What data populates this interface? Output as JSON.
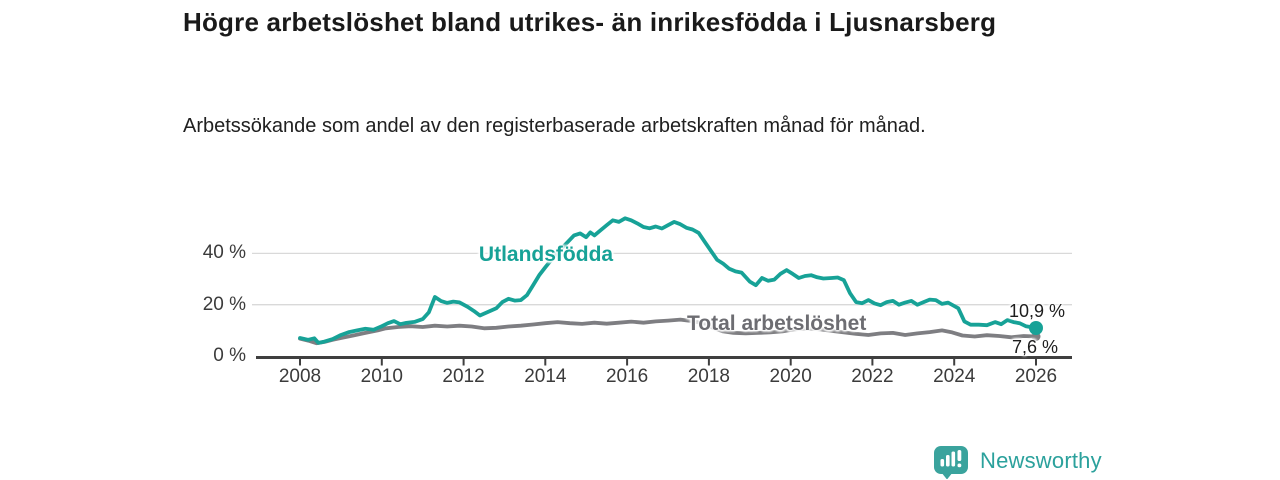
{
  "header": {
    "title": "Högre arbetslöshet bland utrikes- än inrikesfödda i Ljusnarsberg",
    "subtitle": "Arbetssökande som andel av den registerbaserade arbetskraften månad för månad."
  },
  "footer": {
    "brand": "Newsworthy",
    "logo_icon": "bar-chart-badge-icon"
  },
  "colors": {
    "foreign_born_line": "#17a297",
    "total_line": "#7e7e82",
    "total_label": "#6d6d72",
    "grid": "#d9d9d9",
    "axis": "#3f3f3f",
    "brand_teal": "#2ba19c",
    "end_label_text": "#1d1d1d"
  },
  "chart_data": {
    "type": "line",
    "title": "Högre arbetslöshet bland utrikes- än inrikesfödda i Ljusnarsberg",
    "subtitle": "Arbetssökande som andel av den registerbaserade arbetskraften månad för månad.",
    "unit": "%",
    "xlim": [
      2006.9,
      2026.9
    ],
    "ylim": [
      0,
      56
    ],
    "grid": "horizontal",
    "legend_position": "inline-labels",
    "y_ticks": {
      "values": [
        0,
        20,
        40
      ],
      "labels": [
        "0 %",
        "20 %",
        "40 %"
      ]
    },
    "gridline_values": [
      20,
      40
    ],
    "x_ticks": {
      "values": [
        2008,
        2010,
        2012,
        2014,
        2016,
        2018,
        2020,
        2022,
        2024,
        2026
      ],
      "labels": [
        "2008",
        "2010",
        "2012",
        "2014",
        "2016",
        "2018",
        "2020",
        "2022",
        "2024",
        "2026"
      ]
    },
    "series": [
      {
        "name": "Utlandsfödda",
        "color": "#17a297",
        "end_label": "10,9 %",
        "end_value": 10.9,
        "points": [
          [
            2008.0,
            7.0
          ],
          [
            2008.2,
            6.3
          ],
          [
            2008.35,
            6.9
          ],
          [
            2008.45,
            5.1
          ],
          [
            2008.6,
            5.6
          ],
          [
            2008.8,
            6.6
          ],
          [
            2009.0,
            8.2
          ],
          [
            2009.2,
            9.3
          ],
          [
            2009.4,
            10.0
          ],
          [
            2009.6,
            10.6
          ],
          [
            2009.8,
            10.2
          ],
          [
            2010.0,
            11.6
          ],
          [
            2010.15,
            12.8
          ],
          [
            2010.3,
            13.6
          ],
          [
            2010.45,
            12.4
          ],
          [
            2010.6,
            12.9
          ],
          [
            2010.8,
            13.3
          ],
          [
            2011.0,
            14.4
          ],
          [
            2011.15,
            17.0
          ],
          [
            2011.3,
            23.0
          ],
          [
            2011.45,
            21.4
          ],
          [
            2011.6,
            20.7
          ],
          [
            2011.75,
            21.2
          ],
          [
            2011.9,
            20.9
          ],
          [
            2012.1,
            19.2
          ],
          [
            2012.25,
            17.6
          ],
          [
            2012.4,
            15.8
          ],
          [
            2012.6,
            17.2
          ],
          [
            2012.8,
            18.6
          ],
          [
            2012.95,
            21.0
          ],
          [
            2013.1,
            22.3
          ],
          [
            2013.25,
            21.6
          ],
          [
            2013.4,
            21.8
          ],
          [
            2013.55,
            23.7
          ],
          [
            2013.7,
            27.6
          ],
          [
            2013.85,
            31.5
          ],
          [
            2014.0,
            34.6
          ],
          [
            2014.2,
            38.5
          ],
          [
            2014.4,
            42.0
          ],
          [
            2014.55,
            44.5
          ],
          [
            2014.7,
            47.0
          ],
          [
            2014.85,
            47.8
          ],
          [
            2015.0,
            46.3
          ],
          [
            2015.1,
            48.2
          ],
          [
            2015.2,
            47.0
          ],
          [
            2015.35,
            49.0
          ],
          [
            2015.5,
            51.0
          ],
          [
            2015.65,
            52.9
          ],
          [
            2015.8,
            52.3
          ],
          [
            2015.95,
            53.7
          ],
          [
            2016.1,
            52.9
          ],
          [
            2016.25,
            51.7
          ],
          [
            2016.4,
            50.3
          ],
          [
            2016.55,
            49.8
          ],
          [
            2016.7,
            50.5
          ],
          [
            2016.85,
            49.7
          ],
          [
            2017.0,
            51.0
          ],
          [
            2017.15,
            52.3
          ],
          [
            2017.3,
            51.4
          ],
          [
            2017.45,
            50.0
          ],
          [
            2017.6,
            49.3
          ],
          [
            2017.75,
            48.0
          ],
          [
            2017.9,
            44.5
          ],
          [
            2018.05,
            41.0
          ],
          [
            2018.2,
            37.5
          ],
          [
            2018.35,
            36.0
          ],
          [
            2018.5,
            34.0
          ],
          [
            2018.65,
            33.0
          ],
          [
            2018.8,
            32.5
          ],
          [
            2019.0,
            29.0
          ],
          [
            2019.15,
            27.6
          ],
          [
            2019.3,
            30.4
          ],
          [
            2019.45,
            29.3
          ],
          [
            2019.6,
            29.8
          ],
          [
            2019.75,
            32.0
          ],
          [
            2019.9,
            33.5
          ],
          [
            2020.05,
            32.0
          ],
          [
            2020.2,
            30.4
          ],
          [
            2020.35,
            31.2
          ],
          [
            2020.5,
            31.5
          ],
          [
            2020.65,
            30.7
          ],
          [
            2020.8,
            30.2
          ],
          [
            2021.0,
            30.4
          ],
          [
            2021.15,
            30.6
          ],
          [
            2021.3,
            29.6
          ],
          [
            2021.45,
            24.5
          ],
          [
            2021.6,
            21.0
          ],
          [
            2021.75,
            20.6
          ],
          [
            2021.9,
            21.8
          ],
          [
            2022.05,
            20.5
          ],
          [
            2022.2,
            19.8
          ],
          [
            2022.35,
            21.0
          ],
          [
            2022.5,
            21.5
          ],
          [
            2022.65,
            20.0
          ],
          [
            2022.8,
            20.8
          ],
          [
            2022.95,
            21.5
          ],
          [
            2023.1,
            20.0
          ],
          [
            2023.25,
            21.0
          ],
          [
            2023.4,
            22.0
          ],
          [
            2023.55,
            21.8
          ],
          [
            2023.7,
            20.3
          ],
          [
            2023.85,
            20.8
          ],
          [
            2024.0,
            19.5
          ],
          [
            2024.1,
            18.6
          ],
          [
            2024.25,
            13.5
          ],
          [
            2024.4,
            12.2
          ],
          [
            2024.6,
            12.2
          ],
          [
            2024.8,
            12.0
          ],
          [
            2025.0,
            13.2
          ],
          [
            2025.15,
            12.4
          ],
          [
            2025.3,
            14.0
          ],
          [
            2025.45,
            13.2
          ],
          [
            2025.6,
            12.8
          ],
          [
            2025.75,
            11.6
          ],
          [
            2025.9,
            11.2
          ],
          [
            2026.0,
            10.9
          ]
        ]
      },
      {
        "name": "Total arbetslöshet",
        "color": "#7e7e82",
        "end_label": "7,6 %",
        "end_value": 7.6,
        "points": [
          [
            2008.0,
            6.8
          ],
          [
            2008.2,
            6.0
          ],
          [
            2008.4,
            5.0
          ],
          [
            2008.6,
            5.5
          ],
          [
            2008.8,
            6.3
          ],
          [
            2009.0,
            7.0
          ],
          [
            2009.3,
            8.0
          ],
          [
            2009.6,
            9.0
          ],
          [
            2009.9,
            10.0
          ],
          [
            2010.1,
            10.8
          ],
          [
            2010.4,
            11.3
          ],
          [
            2010.7,
            11.6
          ],
          [
            2011.0,
            11.3
          ],
          [
            2011.3,
            11.8
          ],
          [
            2011.6,
            11.5
          ],
          [
            2011.9,
            11.8
          ],
          [
            2012.2,
            11.5
          ],
          [
            2012.5,
            10.8
          ],
          [
            2012.8,
            11.0
          ],
          [
            2013.1,
            11.5
          ],
          [
            2013.4,
            11.8
          ],
          [
            2013.7,
            12.3
          ],
          [
            2014.0,
            12.8
          ],
          [
            2014.3,
            13.2
          ],
          [
            2014.6,
            12.8
          ],
          [
            2014.9,
            12.5
          ],
          [
            2015.2,
            13.0
          ],
          [
            2015.5,
            12.6
          ],
          [
            2015.8,
            13.0
          ],
          [
            2016.1,
            13.4
          ],
          [
            2016.4,
            13.0
          ],
          [
            2016.7,
            13.5
          ],
          [
            2017.0,
            13.8
          ],
          [
            2017.3,
            14.2
          ],
          [
            2017.6,
            13.6
          ],
          [
            2017.9,
            12.6
          ],
          [
            2018.1,
            11.0
          ],
          [
            2018.35,
            9.6
          ],
          [
            2018.6,
            9.0
          ],
          [
            2018.9,
            8.8
          ],
          [
            2019.2,
            9.0
          ],
          [
            2019.5,
            9.2
          ],
          [
            2019.8,
            9.6
          ],
          [
            2020.1,
            10.4
          ],
          [
            2020.4,
            10.8
          ],
          [
            2020.7,
            10.4
          ],
          [
            2021.0,
            9.8
          ],
          [
            2021.3,
            9.2
          ],
          [
            2021.6,
            8.6
          ],
          [
            2021.9,
            8.2
          ],
          [
            2022.2,
            8.8
          ],
          [
            2022.5,
            9.0
          ],
          [
            2022.8,
            8.2
          ],
          [
            2023.1,
            8.8
          ],
          [
            2023.4,
            9.3
          ],
          [
            2023.7,
            10.0
          ],
          [
            2023.95,
            9.2
          ],
          [
            2024.2,
            8.0
          ],
          [
            2024.5,
            7.6
          ],
          [
            2024.8,
            8.1
          ],
          [
            2025.1,
            7.8
          ],
          [
            2025.4,
            7.3
          ],
          [
            2025.7,
            7.8
          ],
          [
            2026.0,
            7.6
          ]
        ]
      }
    ]
  }
}
